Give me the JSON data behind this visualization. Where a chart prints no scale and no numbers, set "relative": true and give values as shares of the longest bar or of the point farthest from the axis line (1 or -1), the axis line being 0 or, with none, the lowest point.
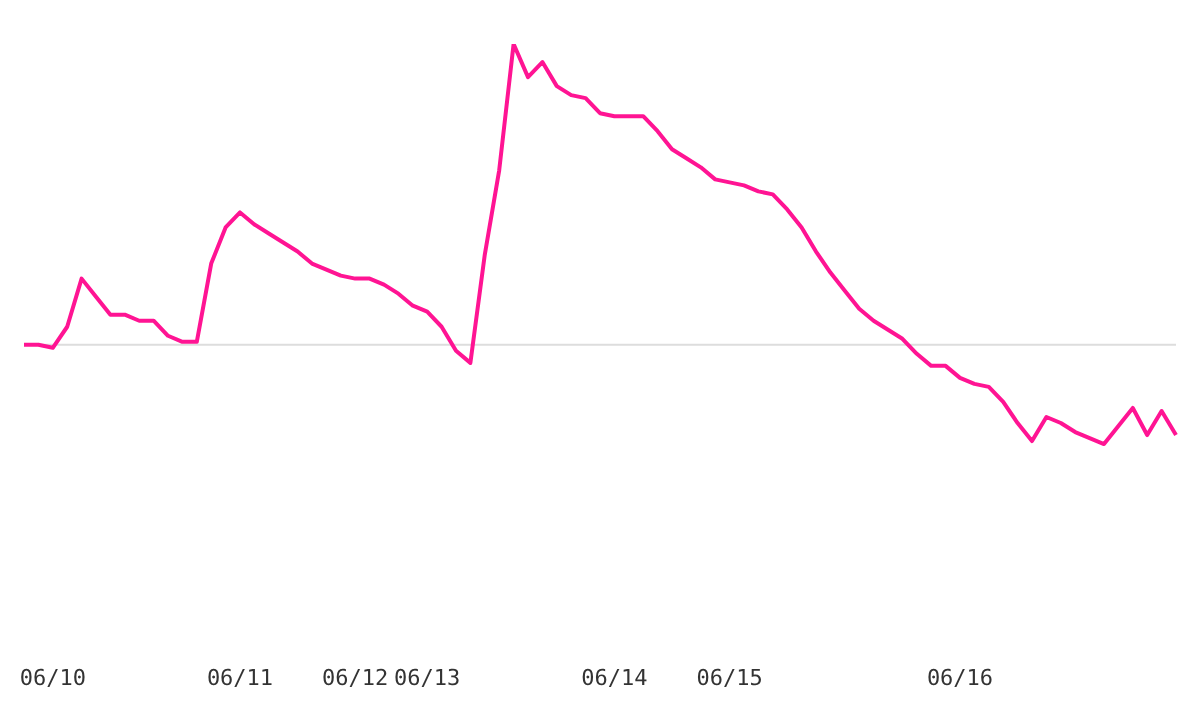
{
  "chart_data": {
    "type": "line",
    "relative": true,
    "grid": false,
    "legend": false,
    "marker": "none",
    "line_style": "solid",
    "categories": [
      null,
      null,
      "06/10",
      null,
      null,
      null,
      null,
      null,
      null,
      null,
      null,
      null,
      null,
      null,
      null,
      "06/11",
      null,
      null,
      null,
      null,
      null,
      null,
      null,
      "06/12",
      null,
      null,
      null,
      null,
      "06/13",
      null,
      null,
      null,
      null,
      null,
      null,
      null,
      null,
      null,
      null,
      null,
      null,
      "06/14",
      null,
      null,
      null,
      null,
      null,
      null,
      null,
      "06/15",
      null,
      null,
      null,
      null,
      null,
      null,
      null,
      null,
      null,
      null,
      null,
      null,
      null,
      null,
      null,
      "06/16",
      null,
      null,
      null,
      null,
      null,
      null,
      null,
      null,
      null,
      null,
      null,
      null,
      null,
      null,
      null
    ],
    "series": [
      {
        "color": "#ff1493",
        "values": [
          0,
          0,
          -0.01,
          0.06,
          0.22,
          0.16,
          0.1,
          0.1,
          0.08,
          0.08,
          0.03,
          0.01,
          0.01,
          0.27,
          0.39,
          0.44,
          0.4,
          0.37,
          0.34,
          0.31,
          0.27,
          0.25,
          0.23,
          0.22,
          0.22,
          0.2,
          0.17,
          0.13,
          0.11,
          0.06,
          -0.02,
          -0.06,
          0.3,
          0.58,
          1,
          0.89,
          0.94,
          0.86,
          0.83,
          0.82,
          0.77,
          0.76,
          0.76,
          0.76,
          0.71,
          0.65,
          0.62,
          0.59,
          0.55,
          0.54,
          0.53,
          0.51,
          0.5,
          0.45,
          0.39,
          0.31,
          0.24,
          0.18,
          0.12,
          0.08,
          0.05,
          0.02,
          -0.03,
          -0.07,
          -0.07,
          -0.11,
          -0.13,
          -0.14,
          -0.19,
          -0.26,
          -0.32,
          -0.24,
          -0.26,
          -0.29,
          -0.31,
          -0.33,
          -0.27,
          -0.21,
          -0.3,
          -0.22,
          -0.3
        ]
      }
    ],
    "ref_lines": [
      {
        "axis": "y",
        "value": 0,
        "color": "#dddddd"
      }
    ]
  }
}
